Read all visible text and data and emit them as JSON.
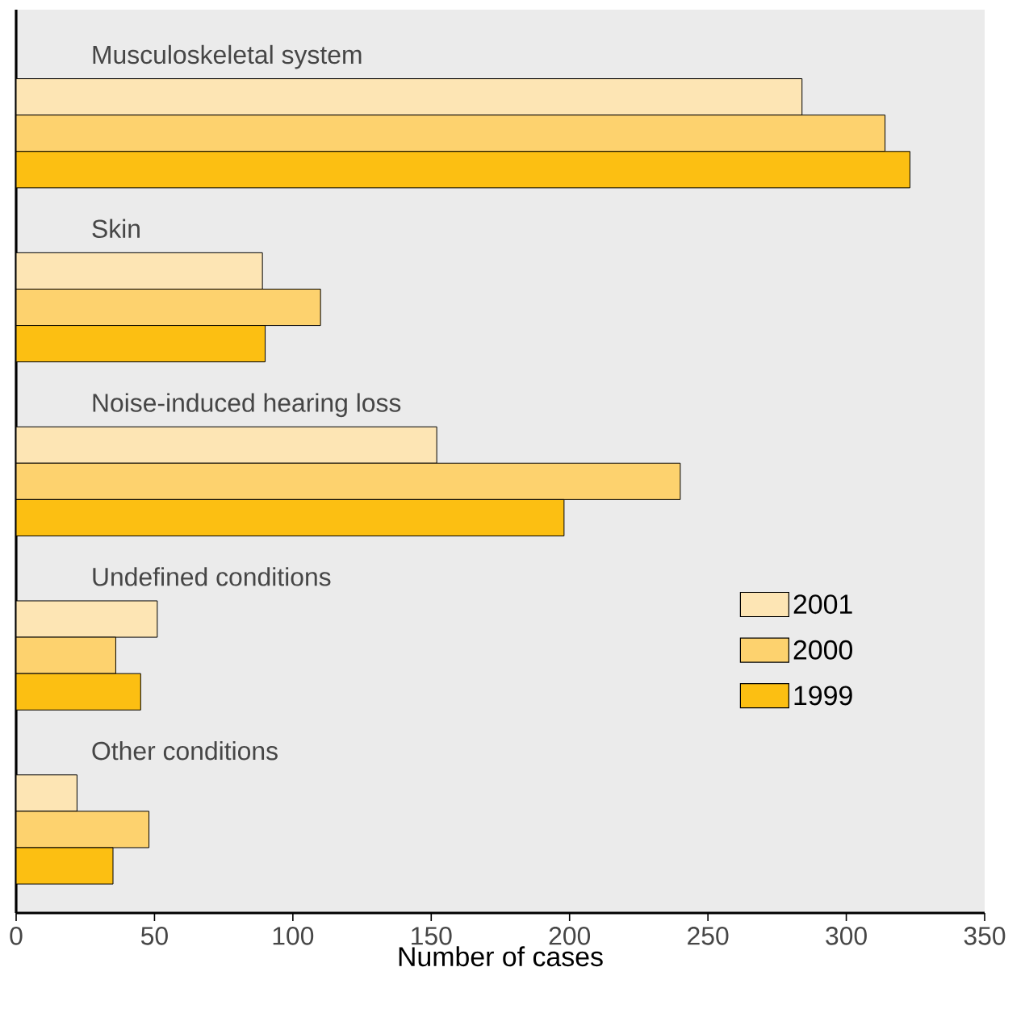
{
  "chart_data": {
    "type": "bar",
    "orientation": "horizontal",
    "categories": [
      "Musculoskeletal system",
      "Skin",
      "Noise-induced hearing loss",
      "Undefined conditions",
      "Other conditions"
    ],
    "series": [
      {
        "name": "2001",
        "color": "#fde5b4",
        "values": [
          284,
          89,
          152,
          51,
          22
        ]
      },
      {
        "name": "2000",
        "color": "#fdd26e",
        "values": [
          314,
          110,
          240,
          36,
          48
        ]
      },
      {
        "name": "1999",
        "color": "#fcbf12",
        "values": [
          323,
          90,
          198,
          45,
          35
        ]
      }
    ],
    "xlim": [
      0,
      350
    ],
    "xticks": [
      0,
      50,
      100,
      150,
      200,
      250,
      300,
      350
    ],
    "xlabel": "Number of cases",
    "legend": "right"
  }
}
